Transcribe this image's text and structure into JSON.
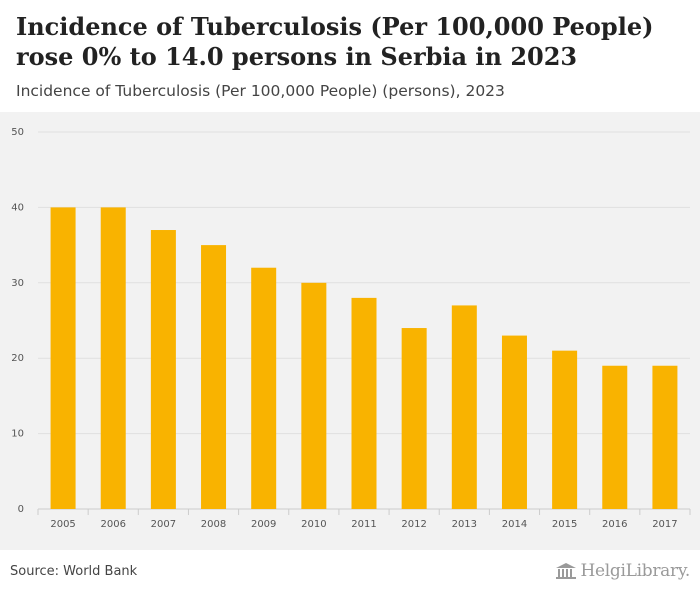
{
  "title": "Incidence of Tuberculosis (Per 100,000 People) rose 0% to 14.0 persons in Serbia in 2023",
  "subtitle": "Incidence of Tuberculosis (Per 100,000 People) (persons), 2023",
  "source": "Source: World Bank",
  "logo_text": "HelgiLibrary.",
  "colors": {
    "bar": "#f9b300",
    "grid": "#e0e0e0",
    "axis_text": "#555555"
  },
  "chart_data": {
    "type": "bar",
    "title": "Incidence of Tuberculosis (Per 100,000 People) rose 0% to 14.0 persons in Serbia in 2023",
    "subtitle": "Incidence of Tuberculosis (Per 100,000 People) (persons), 2023",
    "categories": [
      "2005",
      "2006",
      "2007",
      "2008",
      "2009",
      "2010",
      "2011",
      "2012",
      "2013",
      "2014",
      "2015",
      "2016",
      "2017"
    ],
    "values": [
      40,
      40,
      37,
      35,
      32,
      30,
      28,
      24,
      27,
      23,
      21,
      19,
      19
    ],
    "xlabel": "",
    "ylabel": "",
    "ylim": [
      0,
      50
    ],
    "yticks": [
      0,
      10,
      20,
      30,
      40,
      50
    ],
    "grid": true,
    "legend": "none"
  }
}
